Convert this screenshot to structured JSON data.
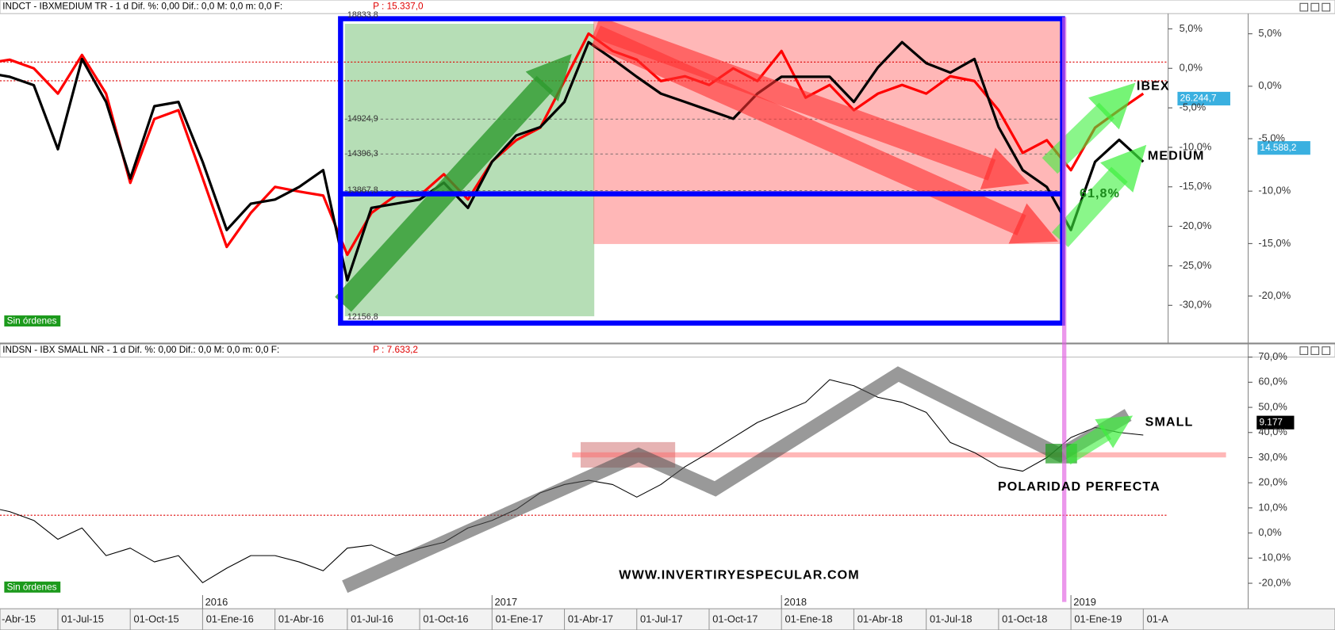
{
  "chart_data": [
    {
      "type": "line",
      "header": "INDCT - IBXMEDIUM TR -  1 d Dif. %: 0,00 Dif.: 0,0 M: 0,0 m: 0,0 F:",
      "price": "P : 15.337,0",
      "status": "Sin órdenes",
      "ylim": [
        -34.4,
        6.5
      ],
      "yticks": [
        {
          "value": 5,
          "label": "5,0%"
        },
        {
          "value": 0,
          "label": "0,0%"
        },
        {
          "value": -5,
          "label": "-5,0%"
        },
        {
          "value": -10,
          "label": "-10,0%"
        },
        {
          "value": -15,
          "label": "-15,0%"
        },
        {
          "value": -20,
          "label": "-20,0%"
        },
        {
          "value": -25,
          "label": "-25,0%"
        },
        {
          "value": -30,
          "label": "-30,0%"
        }
      ],
      "y2lim": [
        -24.2,
        6.6
      ],
      "y2ticks": [
        {
          "value": 5,
          "label": "5,0%"
        },
        {
          "value": 0,
          "label": "0,0%"
        },
        {
          "value": -5,
          "label": "-5,0%"
        },
        {
          "value": -10,
          "label": "-10,0%"
        },
        {
          "value": -15,
          "label": "-15,0%"
        },
        {
          "value": -20,
          "label": "-20,0%"
        }
      ],
      "series": [
        {
          "name": "IBEX",
          "color": "#ff0000",
          "values": [
            0.6,
            1.1,
            0.0,
            -3.2,
            1.7,
            -3.2,
            -14.5,
            -6.4,
            -5.3,
            -13.9,
            -22.6,
            -18.3,
            -15.0,
            -15.6,
            -16.1,
            -23.6,
            -18.3,
            -16.1,
            -16.1,
            -13.4,
            -16.6,
            -11.8,
            -9.1,
            -7.5,
            -1.6,
            4.4,
            2.2,
            1.1,
            -1.6,
            -1.0,
            -2.1,
            0.0,
            -1.6,
            2.2,
            -3.7,
            -2.1,
            -5.3,
            -3.2,
            -2.1,
            -3.2,
            -1.0,
            -1.6,
            -5.3,
            -10.7,
            -9.1,
            -12.9,
            -7.5,
            -5.3,
            -3.2
          ]
        },
        {
          "name": "MEDIUM",
          "color": "#000000",
          "axis": "y2",
          "values": [
            1.3,
            0.9,
            0.1,
            -6.0,
            2.6,
            -1.5,
            -8.8,
            -1.9,
            -1.5,
            -7.2,
            -13.7,
            -11.2,
            -10.8,
            -9.6,
            -8.0,
            -18.5,
            -11.6,
            -11.2,
            -10.8,
            -9.2,
            -11.6,
            -7.2,
            -4.7,
            -3.9,
            -1.5,
            4.2,
            2.6,
            0.9,
            -0.7,
            -1.5,
            -2.3,
            -3.1,
            -0.7,
            0.9,
            0.9,
            0.9,
            -1.5,
            1.8,
            4.2,
            2.2,
            1.3,
            2.6,
            -3.9,
            -8.0,
            -9.6,
            -13.7,
            -7.2,
            -5.1,
            -7.2
          ]
        }
      ],
      "last_value_labels": [
        "26.244,7",
        "14.588,2"
      ],
      "level_labels": [
        "18833,8",
        "14924,9",
        "14396,3",
        "13867,8",
        "12156,8"
      ],
      "annotation": "61,8%"
    },
    {
      "type": "line",
      "header": "INDSN - IBX SMALL NR -  1 d Dif. %: 0,00 Dif.: 0,0 M: 0,0 m: 0,0 F:",
      "price": "P : 7.633,2",
      "status": "Sin órdenes",
      "ylim": [
        -29.8,
        71.7
      ],
      "yticks": [
        {
          "value": 70,
          "label": "70,0%"
        },
        {
          "value": 60,
          "label": "60,0%"
        },
        {
          "value": 50,
          "label": "50,0%"
        },
        {
          "value": 40,
          "label": "40,0%"
        },
        {
          "value": 30,
          "label": "30,0%"
        },
        {
          "value": 20,
          "label": "20,0%"
        },
        {
          "value": 10,
          "label": "10,0%"
        },
        {
          "value": 0,
          "label": "0,0%"
        },
        {
          "value": -10,
          "label": "-10,0%"
        },
        {
          "value": -20,
          "label": "-20,0%"
        }
      ],
      "series": [
        {
          "name": "SMALL",
          "color": "#000000",
          "values": [
            10.6,
            8.5,
            5,
            -2.5,
            2,
            -9,
            -6,
            -11.5,
            -9,
            -19.8,
            -14,
            -9,
            -9,
            -11.5,
            -15,
            -6,
            -4.8,
            -9,
            -6,
            -3.7,
            2,
            5,
            9.4,
            16,
            19.3,
            21,
            19.3,
            14.3,
            19.3,
            26.4,
            32,
            38,
            44,
            48,
            52,
            61,
            58.6,
            54,
            52,
            48,
            36,
            32,
            26.4,
            24.6,
            30,
            38,
            42,
            40,
            39
          ]
        }
      ],
      "last_value_label": "9.177",
      "annotations": [
        "POLARIDAD PERFECTA",
        "WWW.INVERTIRYESPECULAR.COM"
      ],
      "categories": [
        "-Abr-15",
        null,
        null,
        "01-Jul-15",
        null,
        null,
        "01-Oct-15",
        null,
        null,
        "01-Ene-16",
        null,
        null,
        "01-Abr-16",
        null,
        null,
        "01-Jul-16",
        null,
        null,
        "01-Oct-16",
        null,
        null,
        "01-Ene-17",
        null,
        null,
        "01-Abr-17",
        null,
        null,
        "01-Jul-17",
        null,
        null,
        "01-Oct-17",
        null,
        null,
        "01-Ene-18",
        null,
        null,
        "01-Abr-18",
        null,
        null,
        "01-Jul-18",
        null,
        null,
        "01-Oct-18",
        null,
        null,
        "01-Ene-19",
        null,
        null,
        "01-A"
      ],
      "year_labels": [
        "2016",
        "2017",
        "2018",
        "2019"
      ]
    }
  ]
}
